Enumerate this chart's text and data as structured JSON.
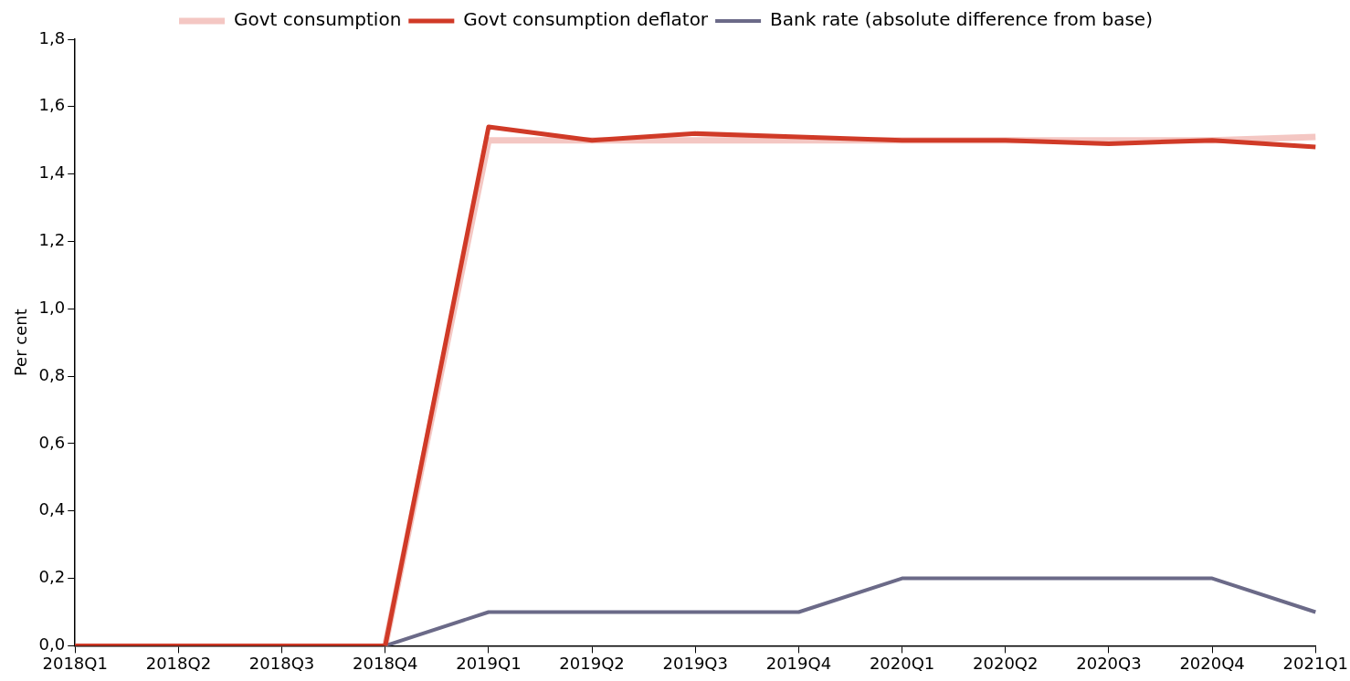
{
  "chart_data": {
    "type": "line",
    "ylabel": "Per cent",
    "categories": [
      "2018Q1",
      "2018Q2",
      "2018Q3",
      "2018Q4",
      "2019Q1",
      "2019Q2",
      "2019Q3",
      "2019Q4",
      "2020Q1",
      "2020Q2",
      "2020Q3",
      "2020Q4",
      "2021Q1"
    ],
    "series": [
      {
        "name": "Govt consumption",
        "color": "#f4c7c3",
        "values": [
          null,
          null,
          null,
          0,
          1.5,
          1.5,
          1.5,
          1.5,
          1.5,
          1.5,
          1.5,
          1.5,
          1.51
        ]
      },
      {
        "name": "Govt consumption deflator",
        "color": "#d03a27",
        "values": [
          0,
          0,
          0,
          0,
          1.54,
          1.5,
          1.52,
          1.51,
          1.5,
          1.5,
          1.49,
          1.5,
          1.48
        ]
      },
      {
        "name": "Bank rate (absolute difference from base)",
        "color": "#6b6a88",
        "values": [
          null,
          null,
          null,
          0,
          0.1,
          0.1,
          0.1,
          0.1,
          0.2,
          0.2,
          0.2,
          0.2,
          0.1
        ]
      }
    ],
    "ylim": [
      0,
      1.8
    ],
    "yticks": [
      {
        "value": 0,
        "label": "0,0"
      },
      {
        "value": 0.2,
        "label": "0,2"
      },
      {
        "value": 0.4,
        "label": "0,4"
      },
      {
        "value": 0.6,
        "label": "0,6"
      },
      {
        "value": 0.8,
        "label": "0,8"
      },
      {
        "value": 1,
        "label": "1,0"
      },
      {
        "value": 1.2,
        "label": "1,2"
      },
      {
        "value": 1.4,
        "label": "1,4"
      },
      {
        "value": 1.6,
        "label": "1,6"
      },
      {
        "value": 1.8,
        "label": "1,8"
      }
    ],
    "grid": false,
    "legend": "top",
    "marker": "none",
    "line_style": "solid"
  }
}
